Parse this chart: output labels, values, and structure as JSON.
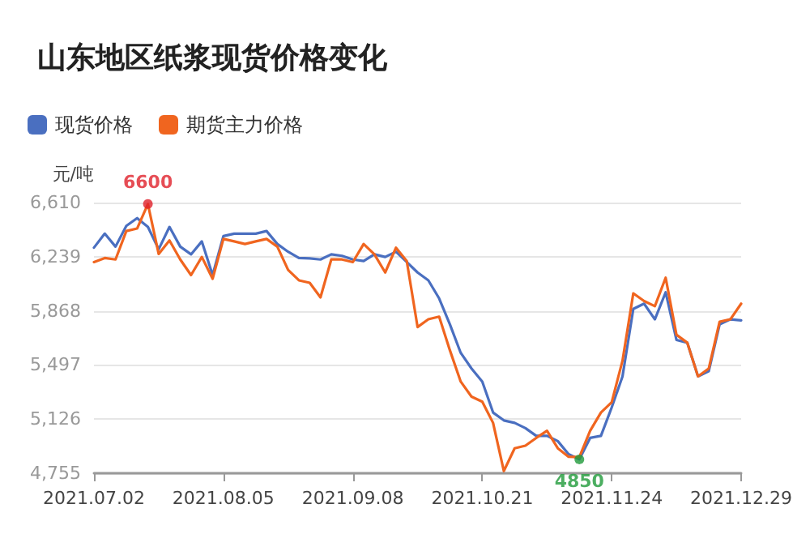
{
  "chart_data": {
    "type": "line",
    "title": "山东地区纸浆现货价格变化",
    "ylabel": "元/吨",
    "categories": [
      "2021.07.02",
      null,
      null,
      null,
      null,
      null,
      null,
      null,
      null,
      null,
      null,
      null,
      "2021.08.05",
      null,
      null,
      null,
      null,
      null,
      null,
      null,
      null,
      null,
      null,
      null,
      "2021.09.08",
      null,
      null,
      null,
      null,
      null,
      null,
      null,
      null,
      null,
      null,
      null,
      "2021.10.21",
      null,
      null,
      null,
      null,
      null,
      null,
      null,
      null,
      null,
      null,
      null,
      "2021.11.24",
      null,
      null,
      null,
      null,
      null,
      null,
      null,
      null,
      null,
      null,
      null,
      "2021.12.29"
    ],
    "series": [
      {
        "name": "现货价格",
        "color": "#4a6fc0",
        "values": [
          6301,
          6397,
          6308,
          6450,
          6503,
          6443,
          6290,
          6443,
          6308,
          6255,
          6344,
          6113,
          6380,
          6397,
          6397,
          6397,
          6415,
          6326,
          6273,
          6230,
          6227,
          6220,
          6255,
          6245,
          6220,
          6209,
          6255,
          6237,
          6273,
          6202,
          6131,
          6077,
          5953,
          5775,
          5580,
          5473,
          5383,
          5171,
          5117,
          5100,
          5064,
          5011,
          5011,
          4975,
          4886,
          4850,
          4997,
          5011,
          5206,
          5419,
          5881,
          5917,
          5810,
          5995,
          5669,
          5650,
          5419,
          5455,
          5775,
          5810,
          5803
        ]
      },
      {
        "name": "期货主力价格",
        "color": "#f0651f",
        "values": [
          6202,
          6230,
          6220,
          6415,
          6432,
          6600,
          6258,
          6350,
          6220,
          6113,
          6237,
          6088,
          6361,
          6344,
          6326,
          6344,
          6361,
          6308,
          6148,
          6077,
          6060,
          5960,
          6220,
          6220,
          6202,
          6326,
          6255,
          6131,
          6301,
          6209,
          5757,
          5810,
          5828,
          5597,
          5383,
          5280,
          5245,
          5100,
          4770,
          4926,
          4944,
          4997,
          5046,
          4926,
          4868,
          4865,
          5046,
          5171,
          5242,
          5526,
          5988,
          5935,
          5900,
          6095,
          5704,
          5650,
          5419,
          5473,
          5793,
          5810,
          5917
        ]
      }
    ],
    "ylim": [
      4755,
      6610
    ],
    "yticks": [
      {
        "value": 4755,
        "label": "4,755"
      },
      {
        "value": 5126,
        "label": "5,126"
      },
      {
        "value": 5497,
        "label": "5,497"
      },
      {
        "value": 5868,
        "label": "5,868"
      },
      {
        "value": 6239,
        "label": "6,239"
      },
      {
        "value": 6610,
        "label": "6,610"
      }
    ],
    "grid": "y",
    "legend": "top left",
    "marker": "none",
    "line_style": "solid",
    "annotations": [
      {
        "text": "6600",
        "y": 6600
      },
      {
        "text": "4850",
        "y": 4850
      }
    ]
  }
}
